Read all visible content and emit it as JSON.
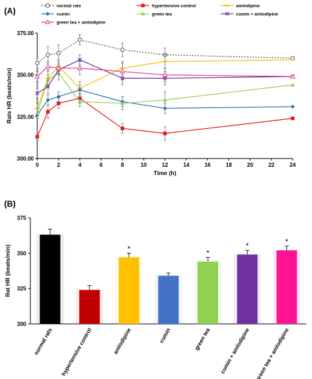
{
  "chart_data": [
    {
      "panel_label": "(A)",
      "type": "line",
      "xlabel": "Time (h)",
      "ylabel": "Rats HR  (beats/min)",
      "xlim": [
        0,
        24
      ],
      "ylim": [
        300,
        375
      ],
      "xticks": [
        "0",
        "2",
        "4",
        "6",
        "8",
        "10",
        "12",
        "14",
        "16",
        "18",
        "20",
        "22",
        "24"
      ],
      "yticks": [
        "300.00",
        "325.00",
        "350.00",
        "375.00"
      ],
      "x": [
        0,
        1,
        2,
        4,
        8,
        12,
        24
      ],
      "legend_position": "top",
      "series": [
        {
          "name": "normal rats",
          "color": "#555555",
          "marker": "circle-open",
          "dash": "2,2",
          "values": [
            357,
            362,
            363,
            371,
            365,
            362,
            360
          ],
          "err": [
            3,
            5,
            5,
            3,
            4,
            4,
            0
          ]
        },
        {
          "name": "hypertensive control",
          "color": "#e31a1c",
          "marker": "square",
          "values": [
            313,
            328,
            333,
            336,
            318,
            315,
            324
          ],
          "err": [
            2,
            4,
            3,
            3,
            3,
            4,
            0
          ]
        },
        {
          "name": "amlodipine",
          "color": "#f5c000",
          "marker": "dash",
          "values": [
            330,
            348,
            355,
            342,
            354,
            358,
            359
          ],
          "err": [
            3,
            5,
            4,
            4,
            4,
            4,
            0
          ]
        },
        {
          "name": "cumin",
          "color": "#2e75b6",
          "marker": "diamond",
          "values": [
            326,
            335,
            337,
            341,
            334,
            330,
            331
          ],
          "err": [
            2,
            3,
            3,
            3,
            3,
            3,
            0
          ]
        },
        {
          "name": "green tea",
          "color": "#92d050",
          "marker": "triangle",
          "values": [
            327,
            347,
            351,
            334,
            333,
            335,
            344
          ],
          "err": [
            3,
            3,
            4,
            3,
            4,
            5,
            0
          ]
        },
        {
          "name": "cumin + amlodipine",
          "color": "#7030a0",
          "marker": "x",
          "values": [
            339,
            343,
            353,
            359,
            348,
            348,
            349
          ],
          "err": [
            3,
            4,
            3,
            3,
            4,
            4,
            0
          ]
        },
        {
          "name": "green tea + amlodipine",
          "color": "#e8388a",
          "marker": "triangle-open",
          "values": [
            349,
            355,
            354,
            354,
            352,
            350,
            349
          ],
          "err": [
            3,
            3,
            3,
            4,
            5,
            4,
            0
          ]
        }
      ]
    },
    {
      "panel_label": "(B)",
      "type": "bar",
      "xlabel": "",
      "ylabel": "Rat HR (beats/min)",
      "ylim": [
        300,
        375
      ],
      "yticks": [
        "300",
        "325",
        "350",
        "375"
      ],
      "categories": [
        "normal rats",
        "hypertensive control",
        "amlodipine",
        "cumin",
        "green tea",
        "cumin + amlodipine",
        "green tea + amlodipine"
      ],
      "values": [
        363,
        324,
        347,
        334,
        344,
        349,
        352
      ],
      "err": [
        4,
        3,
        3,
        2,
        3,
        3,
        3
      ],
      "colors": [
        "#000000",
        "#c00000",
        "#ffc000",
        "#4472c4",
        "#92d050",
        "#7030a0",
        "#ff1493"
      ],
      "annotations": [
        "",
        "",
        "*",
        "",
        "*",
        "*",
        "*"
      ]
    }
  ]
}
